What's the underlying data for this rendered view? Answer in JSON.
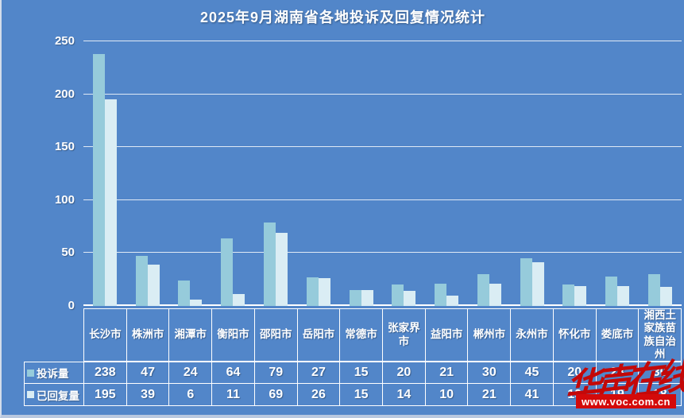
{
  "title": "2025年9月湖南省各地投诉及回复情况统计",
  "colors": {
    "background": "#5286C9",
    "series1": "#96CBDB",
    "series2": "#DAEDF4",
    "gridline": "#FFFFFF",
    "table_border": "#FFFFFF",
    "text": "#FFFFFF",
    "watermark_red": "#C40808"
  },
  "chart_data": {
    "type": "bar",
    "title": "2025年9月湖南省各地投诉及回复情况统计",
    "categories": [
      "长沙市",
      "株洲市",
      "湘潭市",
      "衡阳市",
      "邵阳市",
      "岳阳市",
      "常德市",
      "张家界市",
      "益阳市",
      "郴州市",
      "永州市",
      "怀化市",
      "娄底市",
      "湘西土家族苗族自治州"
    ],
    "series": [
      {
        "name": "投诉量",
        "color": "#96CBDB",
        "values": [
          238,
          47,
          24,
          64,
          79,
          27,
          15,
          20,
          21,
          30,
          45,
          20,
          28,
          30
        ]
      },
      {
        "name": "已回复量",
        "color": "#DAEDF4",
        "values": [
          195,
          39,
          6,
          11,
          69,
          26,
          15,
          14,
          10,
          21,
          41,
          19,
          19,
          18
        ]
      }
    ],
    "xlabel": "",
    "ylabel": "",
    "ylim": [
      0,
      250
    ],
    "yticks": [
      0,
      50,
      100,
      150,
      200,
      250
    ],
    "grid": true,
    "legend_position": "table-left"
  },
  "watermark": {
    "brand": "华声在线",
    "url": "www.voc.com.cn"
  }
}
